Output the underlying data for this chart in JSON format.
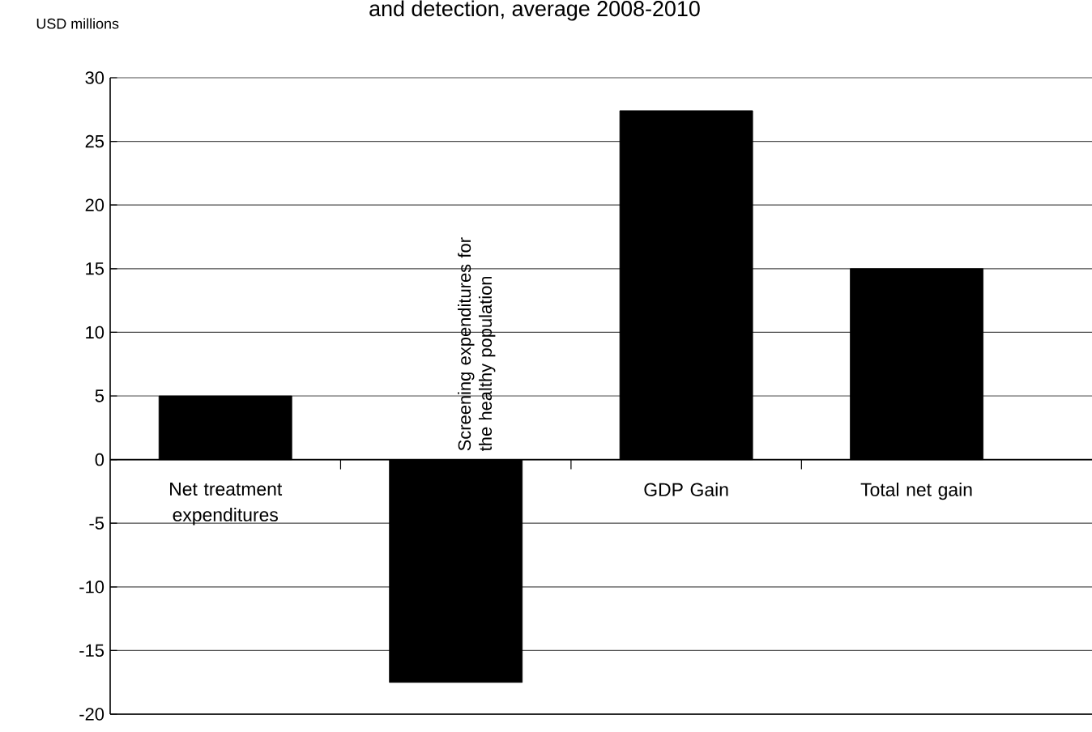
{
  "chart_data": {
    "type": "bar",
    "title": "and detection, average 2008-2010",
    "ylabel": "USD millions",
    "categories": [
      "Net treatment expenditures",
      "Screening expenditures for the healthy population",
      "GDP Gain",
      "Total net gain"
    ],
    "values": [
      5,
      -17.5,
      27.4,
      15
    ],
    "color": "#000000",
    "ylim": [
      -20,
      30
    ],
    "yticks": [
      -20,
      -15,
      -10,
      -5,
      0,
      5,
      10,
      15,
      20,
      25,
      30
    ],
    "grid": "y"
  }
}
